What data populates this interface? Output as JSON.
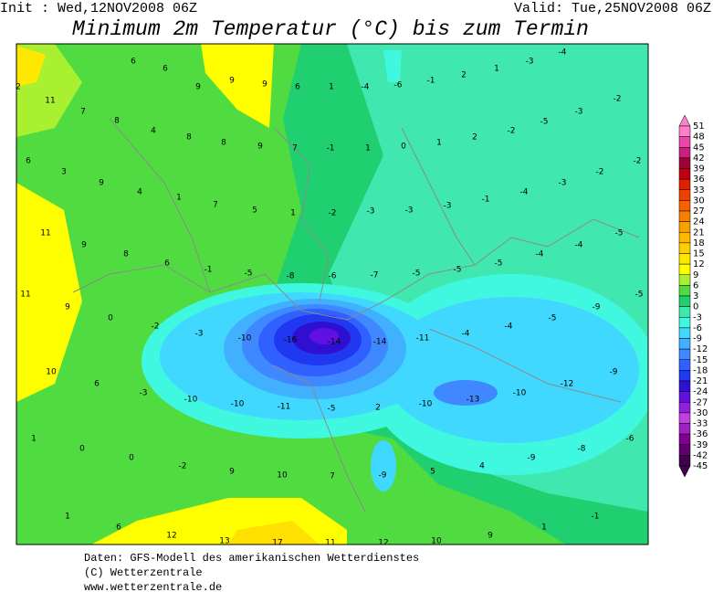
{
  "header": {
    "init": "Init : Wed,12NOV2008 06Z",
    "valid": "Valid: Tue,25NOV2008 06Z",
    "title": "Minimum 2m Temperatur (°C) bis zum Termin"
  },
  "footer": {
    "line1": "Daten: GFS-Modell des amerikanischen Wetterdienstes",
    "line2": "(C) Wetterzentrale",
    "line3": "www.wetterzentrale.de"
  },
  "colorbar": {
    "labels": [
      51,
      48,
      45,
      42,
      39,
      36,
      33,
      30,
      27,
      24,
      21,
      18,
      15,
      12,
      9,
      6,
      3,
      0,
      -3,
      -6,
      -9,
      -12,
      -15,
      -18,
      -21,
      -24,
      -27,
      -30,
      -33,
      -36,
      -39,
      -42,
      -45
    ],
    "colors": [
      "#ff80c8",
      "#e848a8",
      "#c82080",
      "#a00038",
      "#c00010",
      "#e02000",
      "#f04000",
      "#f86000",
      "#f88000",
      "#f8a000",
      "#ffb800",
      "#ffd000",
      "#ffe800",
      "#ffff00",
      "#a8f030",
      "#50dc40",
      "#20d070",
      "#40e8b0",
      "#40f8e0",
      "#40d8ff",
      "#40b0ff",
      "#4088ff",
      "#3060ff",
      "#2038f0",
      "#3010d0",
      "#6010e0",
      "#9020e0",
      "#c040e0",
      "#a020c0",
      "#800090",
      "#600070",
      "#400050"
    ]
  },
  "map": {
    "labels": [
      6,
      6,
      9,
      9,
      9,
      6,
      1,
      -4,
      -6,
      -1,
      2,
      1,
      -3,
      -4,
      2,
      11,
      7,
      8,
      4,
      8,
      8,
      9,
      7,
      -1,
      1,
      0,
      1,
      2,
      -2,
      -5,
      -3,
      -2,
      6,
      3,
      9,
      4,
      1,
      7,
      5,
      1,
      -2,
      -3,
      -3,
      -3,
      -1,
      -4,
      -3,
      -2,
      -2,
      11,
      9,
      8,
      6,
      -1,
      -5,
      -8,
      -6,
      -7,
      -5,
      -5,
      -5,
      -4,
      -4,
      -5,
      11,
      9,
      0,
      -2,
      -3,
      -10,
      -16,
      -14,
      -14,
      -11,
      -4,
      -4,
      -5,
      -9,
      -5,
      10,
      6,
      -3,
      -10,
      -10,
      -11,
      -5,
      2,
      -10,
      -13,
      -10,
      -12,
      -9,
      1,
      0,
      0,
      -2,
      9,
      10,
      7,
      -9,
      5,
      4,
      -9,
      -8,
      -6,
      1,
      6,
      12,
      13,
      17,
      11,
      12,
      10,
      9,
      1,
      -1
    ]
  }
}
